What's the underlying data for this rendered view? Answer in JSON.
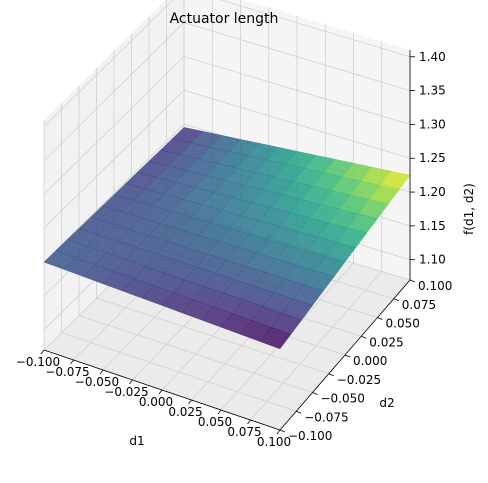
{
  "chart_data": {
    "type": "surface",
    "title": "Actuator length",
    "xlabel": "d1",
    "ylabel": "d2",
    "zlabel": "f(d1, d2)",
    "x_ticks": [
      "−0.100",
      "−0.075",
      "−0.050",
      "−0.025",
      "0.000",
      "0.025",
      "0.050",
      "0.075",
      "0.100"
    ],
    "y_ticks": [
      "−0.100",
      "−0.075",
      "−0.050",
      "−0.025",
      "0.000",
      "0.025",
      "0.050",
      "0.075",
      "0.100"
    ],
    "z_ticks": [
      "1.10",
      "1.15",
      "1.20",
      "1.25",
      "1.30",
      "1.35",
      "1.40"
    ],
    "x_values": [
      -0.1,
      -0.075,
      -0.05,
      -0.025,
      0.0,
      0.025,
      0.05,
      0.075,
      0.1
    ],
    "y_values": [
      -0.1,
      -0.075,
      -0.05,
      -0.025,
      0.0,
      0.025,
      0.05,
      0.075,
      0.1
    ],
    "z_values": [
      1.1,
      1.15,
      1.2,
      1.25,
      1.3,
      1.35,
      1.4
    ],
    "xlim": [
      -0.1,
      0.1
    ],
    "ylim": [
      -0.1,
      0.1
    ],
    "zlim": [
      1.07,
      1.41
    ],
    "surface": {
      "corner_values": {
        "d1_min_d2_min": 1.2,
        "d1_min_d2_max": 1.195,
        "d1_max_d2_min": 1.19,
        "d1_max_d2_max": 1.225
      },
      "colormap": "viridis"
    },
    "grid": true
  }
}
